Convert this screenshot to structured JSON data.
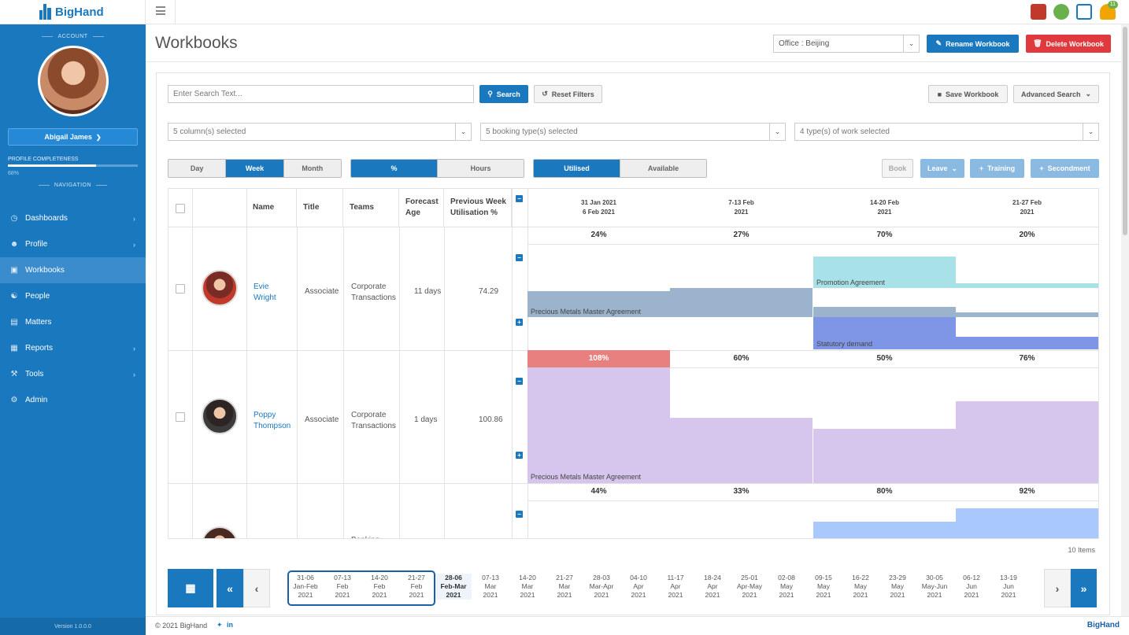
{
  "app": {
    "logo_text": "BigHand",
    "version": "Version 1.0.0.0"
  },
  "topbar": {
    "notification_count": "11"
  },
  "sidebar": {
    "account_heading": "ACCOUNT",
    "user_name": "Abigail James",
    "profile_label": "PROFILE COMPLETENESS",
    "profile_percent": "68%",
    "profile_fraction": 0.68,
    "navigation_heading": "NAVIGATION",
    "items": [
      {
        "label": "Dashboards",
        "icon": "dashboard-icon",
        "chevron": true
      },
      {
        "label": "Profile",
        "icon": "user-icon",
        "chevron": true
      },
      {
        "label": "Workbooks",
        "icon": "book-icon",
        "chevron": false,
        "active": true
      },
      {
        "label": "People",
        "icon": "people-icon",
        "chevron": false
      },
      {
        "label": "Matters",
        "icon": "briefcase-icon",
        "chevron": false
      },
      {
        "label": "Reports",
        "icon": "report-icon",
        "chevron": true
      },
      {
        "label": "Tools",
        "icon": "wrench-icon",
        "chevron": true
      },
      {
        "label": "Admin",
        "icon": "gear-icon",
        "chevron": false
      }
    ]
  },
  "header": {
    "title": "Workbooks",
    "office_select": "Office : Beijing",
    "rename_label": "Rename Workbook",
    "delete_label": "Delete Workbook"
  },
  "toolbar": {
    "search_placeholder": "Enter Search Text...",
    "search_label": "Search",
    "reset_label": "Reset Filters",
    "save_label": "Save Workbook",
    "advanced_label": "Advanced Search",
    "columns_select": "5 column(s) selected",
    "booking_select": "5 booking type(s) selected",
    "work_select": "4 type(s) of work selected",
    "period_tabs": [
      "Day",
      "Week",
      "Month"
    ],
    "period_active": 1,
    "unit_tabs": [
      "%",
      "Hours"
    ],
    "unit_active": 0,
    "mode_tabs": [
      "Utilised",
      "Available"
    ],
    "mode_active": 0,
    "book_label": "Book",
    "leave_label": "Leave",
    "training_label": "Training",
    "secondment_label": "Secondment"
  },
  "grid": {
    "columns": [
      "Name",
      "Title",
      "Teams",
      "Forecast Age",
      "Previous Week Utilisation %"
    ],
    "weeks": [
      {
        "line1": "31 Jan 2021",
        "line2": "6 Feb 2021"
      },
      {
        "line1": "7-13 Feb",
        "line2": "2021"
      },
      {
        "line1": "14-20 Feb",
        "line2": "2021"
      },
      {
        "line1": "21-27 Feb",
        "line2": "2021"
      }
    ],
    "rows": [
      {
        "name1": "Evie",
        "name2": "Wright",
        "title": "Associate",
        "team1": "Corporate",
        "team2": "Transactions",
        "forecast": "11 days",
        "prev": "74.29",
        "util": [
          "24%",
          "27%",
          "70%",
          "20%"
        ],
        "bars": [
          "Promotion Agreement",
          "Precious Metals Master Agreement",
          "Statutory demand"
        ]
      },
      {
        "name1": "Poppy",
        "name2": "Thompson",
        "title": "Associate",
        "team1": "Corporate",
        "team2": "Transactions",
        "forecast": "1 days",
        "prev": "100.86",
        "util": [
          "108%",
          "60%",
          "50%",
          "76%"
        ],
        "bars": [
          "Precious Metals Master Agreement"
        ]
      },
      {
        "team1": "Banking",
        "util": [
          "44%",
          "33%",
          "80%",
          "92%"
        ]
      }
    ],
    "items_count": "10 Items"
  },
  "colors": {
    "primary": "#1a78bf",
    "danger": "#e03a3e",
    "teal": "#a8e2e8",
    "slate": "#9bb3cc",
    "indigo": "#7f96e6",
    "lavender": "#d6c5ec",
    "overbook": "#e88080",
    "sky": "#a9c8fb"
  },
  "date_strip": {
    "days": [
      {
        "a": "31-06",
        "b": "Jan-Feb",
        "c": "2021"
      },
      {
        "a": "07-13",
        "b": "Feb",
        "c": "2021"
      },
      {
        "a": "14-20",
        "b": "Feb",
        "c": "2021"
      },
      {
        "a": "21-27",
        "b": "Feb",
        "c": "2021"
      },
      {
        "a": "28-06",
        "b": "Feb-Mar",
        "c": "2021"
      },
      {
        "a": "07-13",
        "b": "Mar",
        "c": "2021"
      },
      {
        "a": "14-20",
        "b": "Mar",
        "c": "2021"
      },
      {
        "a": "21-27",
        "b": "Mar",
        "c": "2021"
      },
      {
        "a": "28-03",
        "b": "Mar-Apr",
        "c": "2021"
      },
      {
        "a": "04-10",
        "b": "Apr",
        "c": "2021"
      },
      {
        "a": "11-17",
        "b": "Apr",
        "c": "2021"
      },
      {
        "a": "18-24",
        "b": "Apr",
        "c": "2021"
      },
      {
        "a": "25-01",
        "b": "Apr-May",
        "c": "2021"
      },
      {
        "a": "02-08",
        "b": "May",
        "c": "2021"
      },
      {
        "a": "09-15",
        "b": "May",
        "c": "2021"
      },
      {
        "a": "16-22",
        "b": "May",
        "c": "2021"
      },
      {
        "a": "23-29",
        "b": "May",
        "c": "2021"
      },
      {
        "a": "30-05",
        "b": "May-Jun",
        "c": "2021"
      },
      {
        "a": "06-12",
        "b": "Jun",
        "c": "2021"
      },
      {
        "a": "13-19",
        "b": "Jun",
        "c": "2021"
      }
    ]
  },
  "footer": {
    "copyright": "© 2021 BigHand",
    "brand": "BigHand"
  }
}
